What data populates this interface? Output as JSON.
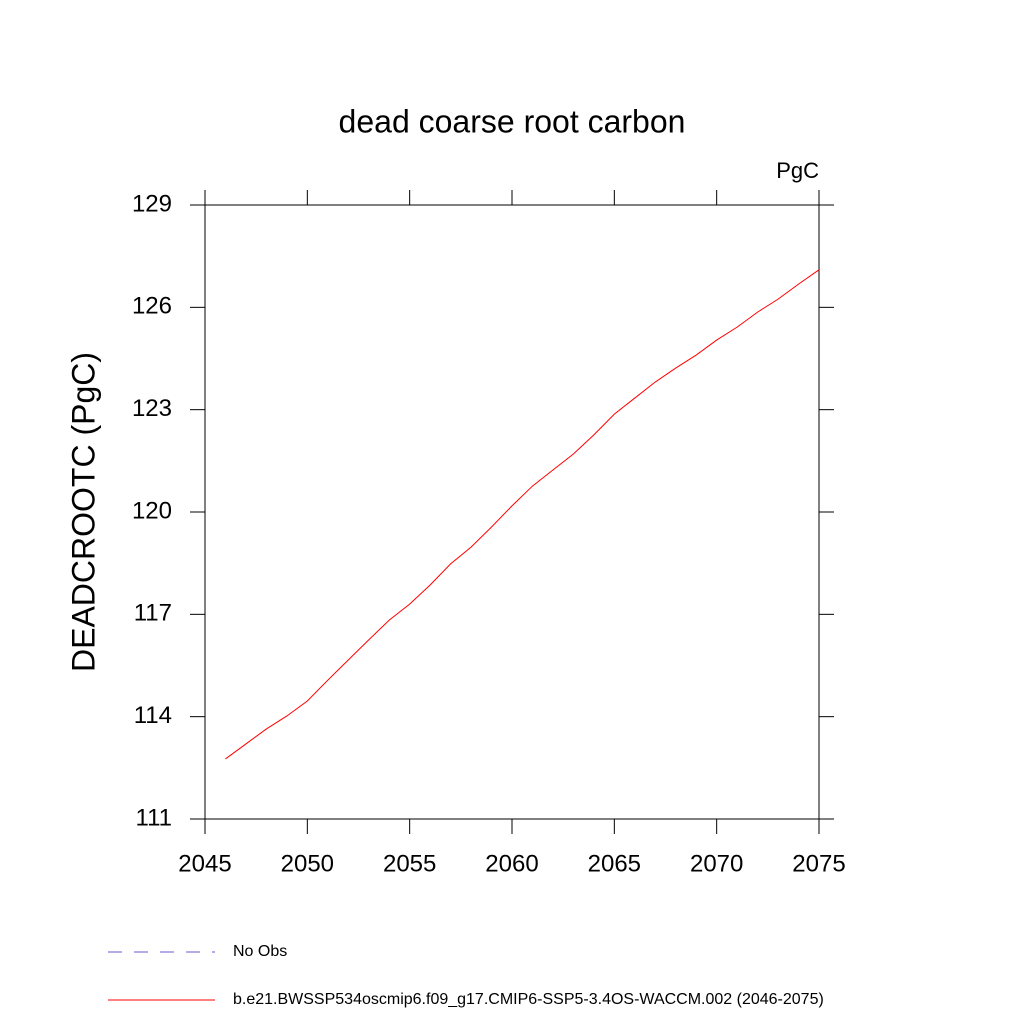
{
  "chart_data": {
    "type": "line",
    "title": "dead coarse root carbon",
    "units": "PgC",
    "y_label": "DEADCROOTC  (PgC)",
    "x": [
      2046,
      2047,
      2048,
      2049,
      2050,
      2051,
      2052,
      2053,
      2054,
      2055,
      2056,
      2057,
      2058,
      2059,
      2060,
      2061,
      2062,
      2063,
      2064,
      2065,
      2066,
      2067,
      2068,
      2069,
      2070,
      2071,
      2072,
      2073,
      2074,
      2075
    ],
    "series": [
      {
        "name": "b.e21.BWSSP534oscmip6.f09_g17.CMIP6-SSP5-3.4OS-WACCM.002 (2046-2075)",
        "color": "#ff0000",
        "values": [
          112.76,
          113.2,
          113.64,
          114.02,
          114.46,
          115.07,
          115.66,
          116.25,
          116.83,
          117.3,
          117.86,
          118.48,
          118.97,
          119.56,
          120.18,
          120.76,
          121.23,
          121.7,
          122.26,
          122.87,
          123.34,
          123.81,
          124.22,
          124.6,
          125.04,
          125.42,
          125.86,
          126.24,
          126.68,
          127.1
        ]
      }
    ],
    "legend_extra": [
      {
        "name": "No Obs",
        "color": "#6a5acd",
        "dashed": true
      }
    ],
    "xlim": [
      2045,
      2075
    ],
    "xticks": [
      2045,
      2050,
      2055,
      2060,
      2065,
      2070,
      2075
    ],
    "ylim": [
      111,
      129
    ],
    "yticks": [
      111,
      114,
      117,
      120,
      123,
      126,
      129
    ],
    "grid": false
  }
}
